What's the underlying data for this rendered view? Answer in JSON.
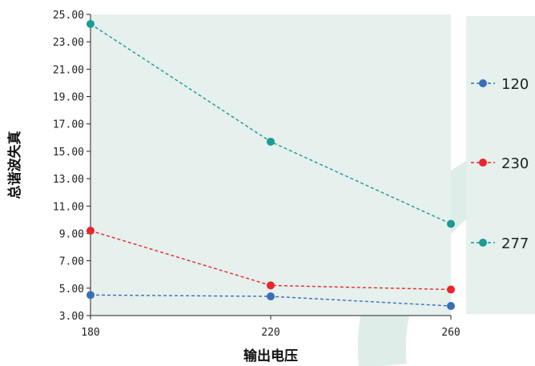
{
  "chart_data": {
    "type": "line",
    "x": [
      180,
      220,
      260
    ],
    "xlabel": "输出电压",
    "ylabel": "总谐波失真",
    "ylim": [
      3.0,
      25.0
    ],
    "yticks": [
      "3.00",
      "5.00",
      "7.00",
      "9.00",
      "11.00",
      "13.00",
      "15.00",
      "17.00",
      "19.00",
      "21.00",
      "23.00",
      "25.00"
    ],
    "xticks": [
      "180",
      "220",
      "260"
    ],
    "series": [
      {
        "name": "120",
        "values": [
          4.5,
          4.4,
          3.7
        ],
        "color": "#3a6fb5"
      },
      {
        "name": "230",
        "values": [
          9.2,
          5.2,
          4.9
        ],
        "color": "#e8262b"
      },
      {
        "name": "277",
        "values": [
          24.3,
          15.7,
          9.7
        ],
        "color": "#1a9b93"
      }
    ],
    "legend_position": "right",
    "line_style": "dashed",
    "plot_background": "#e6f0ec",
    "grid": false
  }
}
